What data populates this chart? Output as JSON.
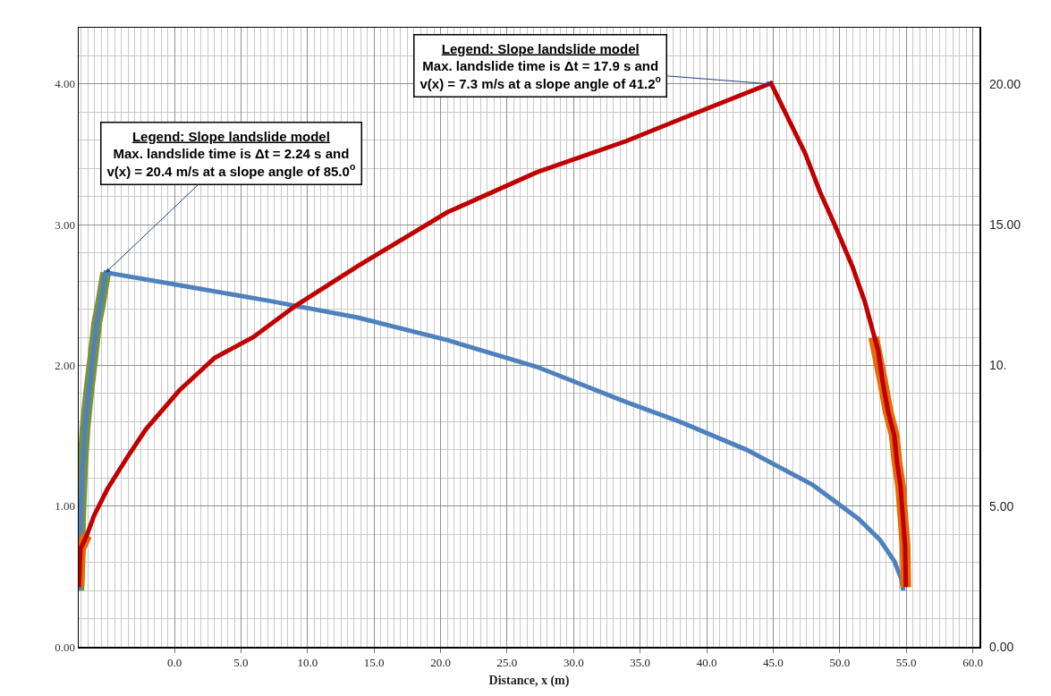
{
  "chart_data": {
    "type": "line",
    "xlabel": "Distance, x (m)",
    "xlim": [
      -7.2,
      60.5
    ],
    "xticks": [
      {
        "value": 0,
        "label": "0.0"
      },
      {
        "value": 5,
        "label": "5.0"
      },
      {
        "value": 10,
        "label": "10.0"
      },
      {
        "value": 15,
        "label": "15.0"
      },
      {
        "value": 20,
        "label": "20.0"
      },
      {
        "value": 25,
        "label": "25.0"
      },
      {
        "value": 30,
        "label": "30.0"
      },
      {
        "value": 35,
        "label": "35.0"
      },
      {
        "value": 40,
        "label": "40.0"
      },
      {
        "value": 45,
        "label": "45.0"
      },
      {
        "value": 50,
        "label": "50.0"
      },
      {
        "value": 55,
        "label": "55.0"
      },
      {
        "value": 60,
        "label": "60.0"
      }
    ],
    "ylim": [
      0,
      4.4
    ],
    "yticks": [
      {
        "value": 0,
        "label": "0.00"
      },
      {
        "value": 1,
        "label": "1.00"
      },
      {
        "value": 2,
        "label": "2.00"
      },
      {
        "value": 3,
        "label": "3.00"
      },
      {
        "value": 4,
        "label": "4.00"
      }
    ],
    "y2lim": [
      0,
      22.0
    ],
    "y2ticks": [
      {
        "value": 0,
        "label": "0.00"
      },
      {
        "value": 5,
        "label": "5.00"
      },
      {
        "value": 10,
        "label": "10."
      },
      {
        "value": 15,
        "label": "15.00"
      },
      {
        "value": 20,
        "label": "20.00"
      }
    ],
    "grid": true,
    "series": [
      {
        "color": "#77933c",
        "x": [
          -7.19,
          -7.06,
          -6.92,
          -6.72,
          -6.45,
          -6.12,
          -5.85,
          -5.58,
          -5.17
        ],
        "values": [
          0.4,
          0.9,
          1.26,
          1.56,
          1.81,
          2.07,
          2.3,
          2.43,
          2.66
        ]
      },
      {
        "color": "#4f81bd",
        "x": [
          -7.19,
          -7.06,
          -6.92,
          -6.72,
          -6.45,
          -6.12,
          -5.85,
          -5.58,
          -5.17,
          0.34,
          7.06,
          13.78,
          20.5,
          27.22,
          33.94,
          37.97,
          43.01,
          47.98,
          51.41,
          53.02,
          54.1,
          54.64,
          54.77
        ],
        "values": [
          0.4,
          0.9,
          1.26,
          1.56,
          1.81,
          2.07,
          2.3,
          2.43,
          2.66,
          2.57,
          2.46,
          2.34,
          2.18,
          1.99,
          1.74,
          1.6,
          1.4,
          1.15,
          0.91,
          0.76,
          0.61,
          0.48,
          0.4
        ]
      },
      {
        "color": "#e36c09",
        "axis": "y2",
        "x": [
          -7.19,
          -7.06,
          -6.59,
          -6.4,
          52.55,
          53.23,
          53.63,
          54.1,
          54.3,
          54.57,
          54.77,
          54.91,
          54.97
        ],
        "values": [
          2.12,
          3.49,
          3.96,
          null,
          11.0,
          9.41,
          8.37,
          7.51,
          6.56,
          5.71,
          4.44,
          3.61,
          2.12
        ]
      },
      {
        "color": "#c00000",
        "axis": "y2",
        "x": [
          -7.19,
          -7.06,
          -6.59,
          -6.05,
          -5.04,
          -3.49,
          -2.15,
          0.34,
          3.02,
          5.91,
          9.07,
          13.78,
          20.5,
          27.22,
          33.94,
          38.44,
          44.83,
          47.38,
          48.52,
          49.6,
          50.94,
          51.88,
          52.89,
          53.23,
          53.63,
          54.1,
          54.3,
          54.57,
          54.77,
          54.91,
          54.97
        ],
        "values": [
          2.12,
          3.49,
          3.96,
          4.66,
          5.61,
          6.78,
          7.73,
          9.1,
          10.27,
          11.0,
          12.11,
          13.53,
          15.44,
          16.86,
          17.97,
          18.83,
          20.03,
          17.56,
          16.16,
          15.02,
          13.53,
          12.27,
          10.52,
          9.41,
          8.37,
          7.51,
          6.56,
          5.71,
          4.44,
          3.61,
          2.12
        ]
      }
    ],
    "annotations": [
      {
        "text": "Legend: Slope landslide model\nMax. landslide time is Δt = 2.24 s and\nv(x) = 20.4 m/s at a slope angle of 85.0$^{o}$",
        "x": -5.17,
        "y": 2.66
      },
      {
        "text": "Legend: Slope landslide model\nMax. landslide time is Δt = 17.9 s and\nv(x) = 7.3 m/s at a slope angle of 41.2$^{o}$",
        "x": 44.83,
        "y": 4.0
      }
    ]
  }
}
